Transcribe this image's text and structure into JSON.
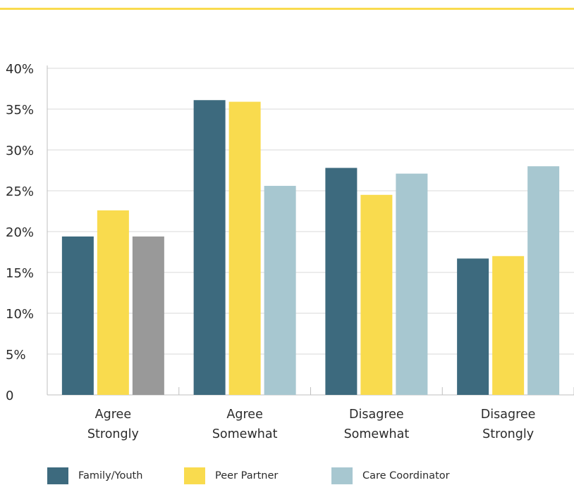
{
  "colors": {
    "top_rule": "#F9DB4E",
    "grid": "#D9D9D9",
    "axis": "#BFBFBF",
    "family_youth": "#3D6A7E",
    "peer_partner": "#F9DB4E",
    "care_coordinator": "#A7C7D0",
    "gray_bar": "#999999"
  },
  "chart_data": {
    "type": "bar",
    "categories": [
      [
        "Agree",
        "Strongly"
      ],
      [
        "Agree",
        "Somewhat"
      ],
      [
        "Disagree",
        "Somewhat"
      ],
      [
        "Disagree",
        "Strongly"
      ]
    ],
    "series": [
      {
        "name": "Family/Youth",
        "color": "#3D6A7E",
        "values": [
          19.4,
          36.1,
          27.8,
          16.7
        ]
      },
      {
        "name": "Peer Partner",
        "color": "#F9DB4E",
        "values": [
          22.6,
          35.9,
          24.5,
          17.0
        ]
      },
      {
        "name": "Care Coordinator",
        "color": "#A7C7D0",
        "values": [
          19.4,
          25.6,
          27.1,
          28.0
        ]
      }
    ],
    "bar_color_overrides": [
      {
        "series": 2,
        "category": 0,
        "color": "#999999"
      }
    ],
    "y_ticks": [
      "0",
      "5%",
      "10%",
      "15%",
      "20%",
      "25%",
      "30%",
      "35%",
      "40%"
    ],
    "ylim": [
      0,
      40
    ],
    "ytick_step": 5,
    "grid": true,
    "legend_position": "bottom",
    "title": "",
    "xlabel": "",
    "ylabel": ""
  },
  "legend": [
    {
      "label": "Family/Youth",
      "color": "#3D6A7E"
    },
    {
      "label": "Peer Partner",
      "color": "#F9DB4E"
    },
    {
      "label": "Care Coordinator",
      "color": "#A7C7D0"
    }
  ]
}
